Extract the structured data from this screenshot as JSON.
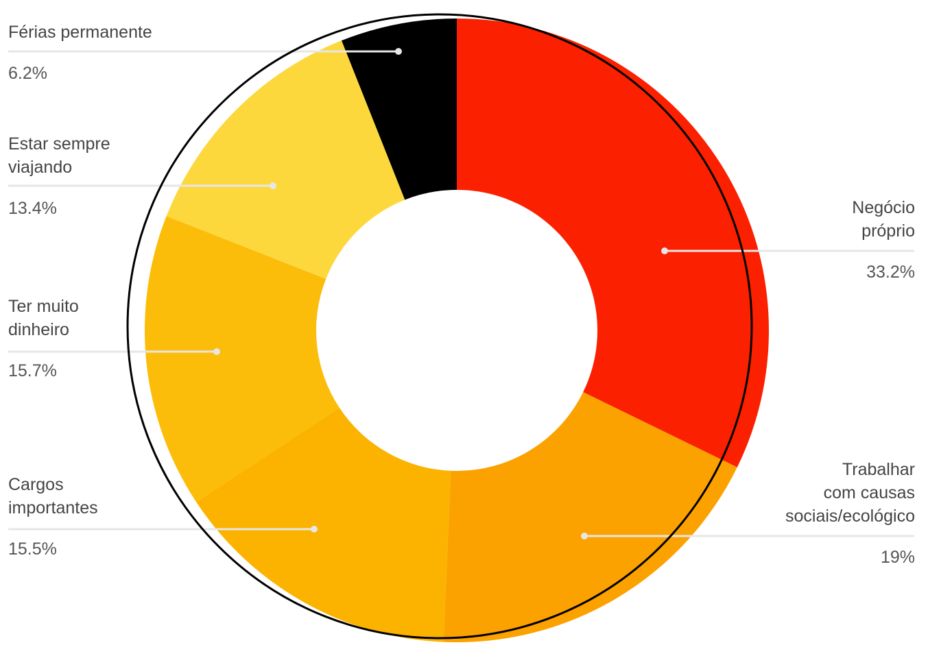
{
  "chart_data": {
    "type": "pie",
    "variant": "donut",
    "slices": [
      {
        "label": "Negócio\npróprio",
        "percent_label": "33.2%",
        "value": 33.2,
        "color": "#fb2000"
      },
      {
        "label": "Trabalhar\ncom causas\nsociais/ecológico",
        "percent_label": "19%",
        "value": 19.0,
        "color": "#fba200"
      },
      {
        "label": "Cargos\nimportantes",
        "percent_label": "15.5%",
        "value": 15.5,
        "color": "#fbb300"
      },
      {
        "label": "Ter muito\ndinheiro",
        "percent_label": "15.7%",
        "value": 15.7,
        "color": "#fbbd09"
      },
      {
        "label": "Estar sempre\nviajando",
        "percent_label": "13.4%",
        "value": 13.4,
        "color": "#fdd83d"
      },
      {
        "label": "Férias permanente",
        "percent_label": "6.2%",
        "value": 6.2,
        "color": "#000000"
      }
    ],
    "legend": "none",
    "labels": "outside with leader lines"
  }
}
